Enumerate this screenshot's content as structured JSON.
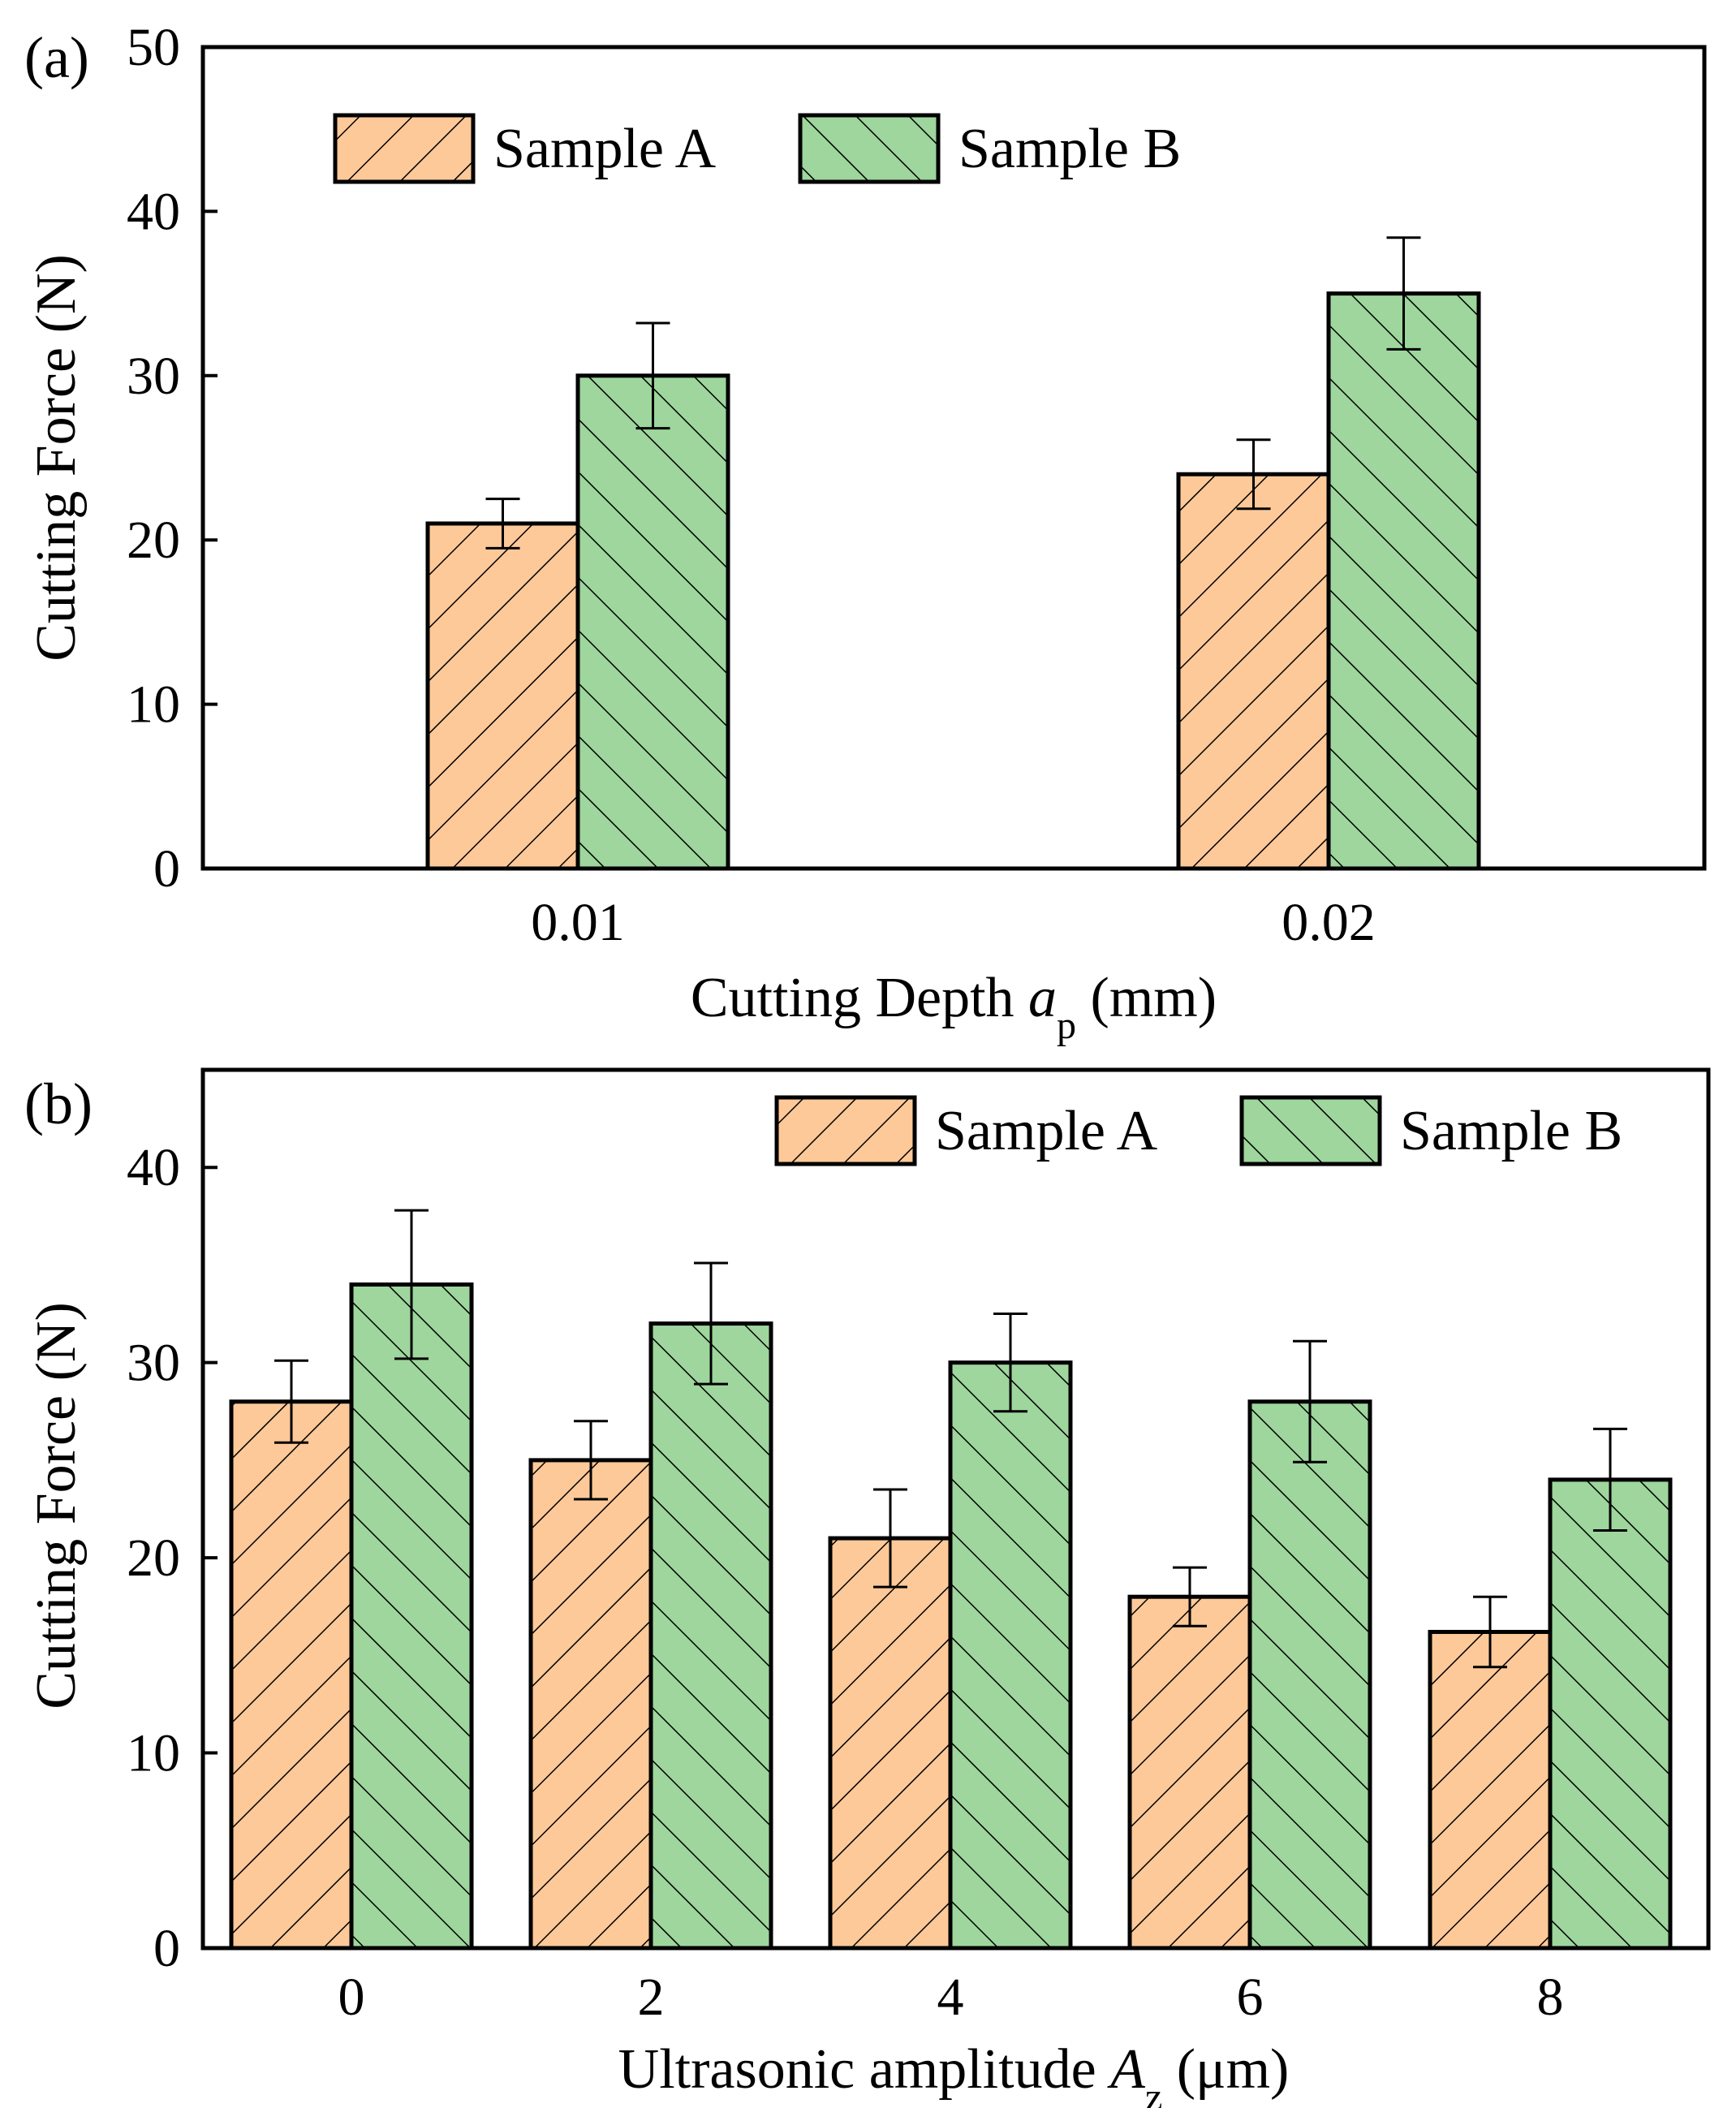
{
  "colors": {
    "sample_a_fill": "#fdc998",
    "sample_b_fill": "#9ed69d",
    "outline": "#000000",
    "hatch": "#000000"
  },
  "chart_data": [
    {
      "type": "bar",
      "panel_label": "(a)",
      "title": "",
      "xlabel": "Cutting Depth",
      "xlabel_var": "a",
      "xlabel_sub": "p",
      "xlabel_unit": " (mm)",
      "ylabel": "Cutting Force (N)",
      "ylim": [
        0,
        50
      ],
      "yticks": [
        0,
        10,
        20,
        30,
        40,
        50
      ],
      "categories": [
        "0.01",
        "0.02"
      ],
      "grid": false,
      "legend_position": "top-left",
      "series": [
        {
          "name": "Sample A",
          "hatch": "forward-diagonal",
          "values": [
            21,
            24
          ],
          "errors": [
            1.5,
            2.1
          ]
        },
        {
          "name": "Sample B",
          "hatch": "backward-diagonal",
          "values": [
            30,
            35
          ],
          "errors": [
            3.2,
            3.4
          ]
        }
      ]
    },
    {
      "type": "bar",
      "panel_label": "(b)",
      "title": "",
      "xlabel": "Ultrasonic amplitude",
      "xlabel_var": "A",
      "xlabel_sub": "z",
      "xlabel_unit": " (μm)",
      "ylabel": "Cutting Force (N)",
      "ylim": [
        0,
        45
      ],
      "yticks": [
        0,
        10,
        20,
        30,
        40
      ],
      "categories": [
        "0",
        "2",
        "4",
        "6",
        "8"
      ],
      "grid": false,
      "legend_position": "top-right",
      "series": [
        {
          "name": "Sample A",
          "hatch": "forward-diagonal",
          "values": [
            28,
            25,
            21,
            18,
            16.2
          ],
          "errors": [
            2.1,
            2.0,
            2.5,
            1.5,
            1.8
          ]
        },
        {
          "name": "Sample B",
          "hatch": "backward-diagonal",
          "values": [
            34,
            32,
            30,
            28,
            24
          ],
          "errors": [
            3.8,
            3.1,
            2.5,
            3.1,
            2.6
          ]
        }
      ]
    }
  ]
}
